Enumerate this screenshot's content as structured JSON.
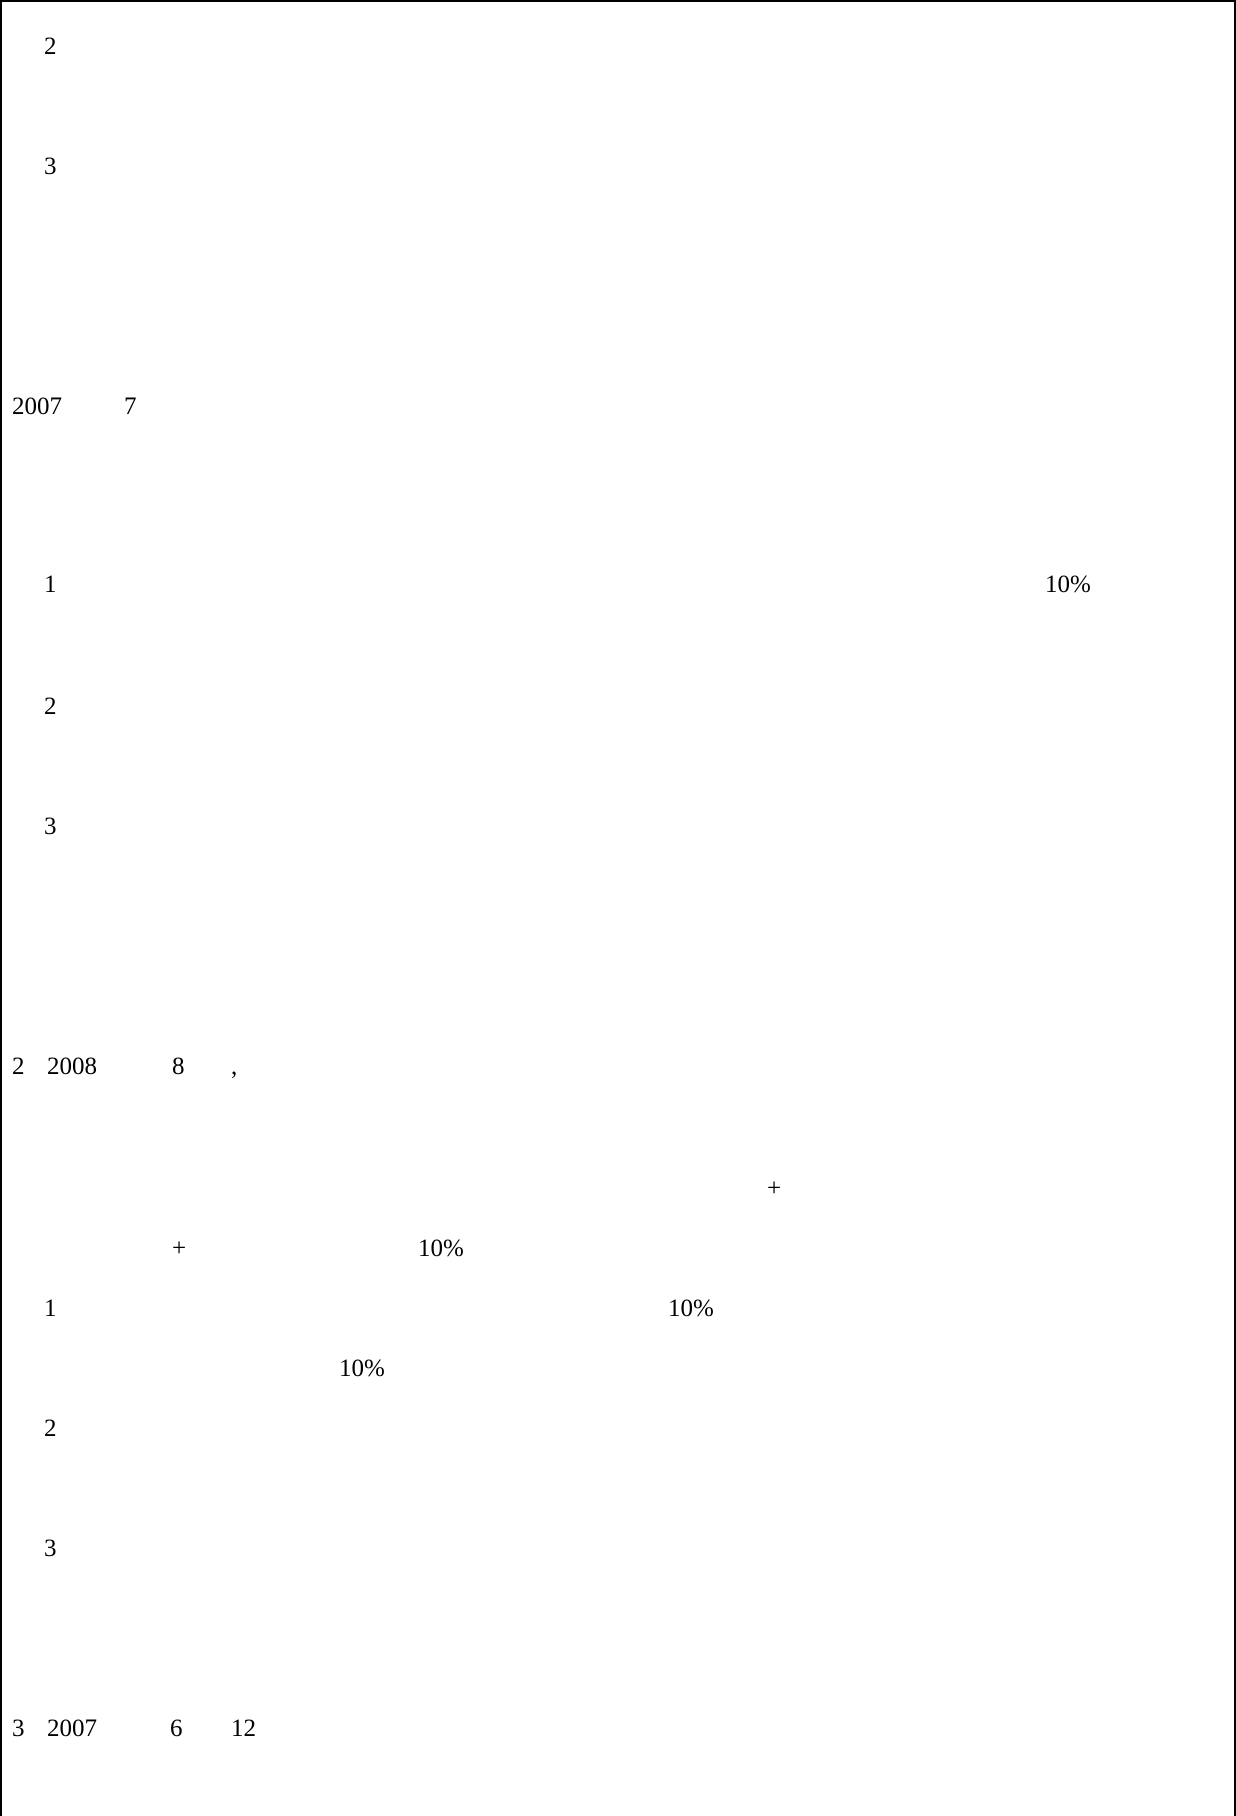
{
  "document": {
    "lines": {
      "l01": "2",
      "l02": "3",
      "l03_a": "2007",
      "l03_b": "7",
      "l04_num": "1",
      "l04_pct": "10%",
      "l05": "2",
      "l06": "3",
      "l07_a": "2",
      "l07_b": "2008",
      "l07_c": "8",
      "l07_d": ",",
      "l08_plus": "+",
      "l09_plus": "+",
      "l09_pct": "10%",
      "l10_num": "1",
      "l10_pct": "10%",
      "l11_pct": "10%",
      "l12": "2",
      "l13": "3",
      "l14_a": "3",
      "l14_b": "2007",
      "l14_c": "6",
      "l14_d": "12"
    }
  }
}
